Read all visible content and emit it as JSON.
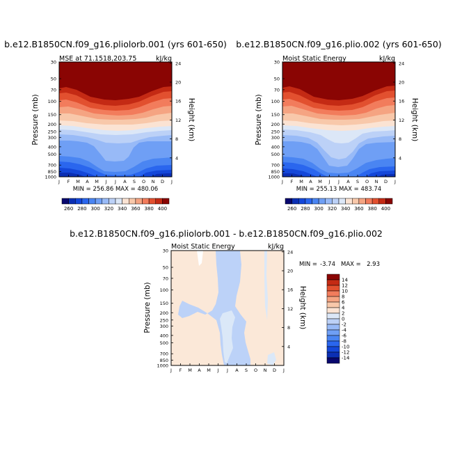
{
  "page": {
    "background": "#ffffff"
  },
  "chart_data": [
    {
      "type": "contour",
      "title": "b.e12.B1850CN.f09_g16.pliolorb.001 (yrs 601-650)",
      "panel_left_label": "MSE at 71.1518,203.75",
      "panel_right_label": "kJ/kg",
      "ylabel": "Pressure (mb)",
      "ylabel_right": "Height (km)",
      "x_ticks": [
        "J",
        "F",
        "M",
        "A",
        "M",
        "J",
        "J",
        "A",
        "S",
        "O",
        "N",
        "D",
        "J"
      ],
      "pressure_levels": [
        30,
        50,
        70,
        100,
        150,
        200,
        250,
        300,
        400,
        500,
        700,
        850,
        1000
      ],
      "height_ticks_km": [
        4,
        8,
        12,
        16,
        20,
        24
      ],
      "minmax_text": "MIN = 256.86  MAX = 480.06",
      "min": 256.86,
      "max": 480.06,
      "contour_levels": [
        260,
        270,
        280,
        290,
        300,
        310,
        320,
        330,
        340,
        350,
        360,
        370,
        380,
        390,
        400
      ],
      "colorbar_labels": [
        "260",
        "280",
        "300",
        "320",
        "340",
        "360",
        "380",
        "400"
      ]
    },
    {
      "type": "contour",
      "title": "b.e12.B1850CN.f09_g16.plio.002 (yrs 601-650)",
      "panel_left_label": "Moist Static Energy",
      "panel_right_label": "kJ/kg",
      "ylabel": "Pressure (mb)",
      "ylabel_right": "Height (km)",
      "x_ticks": [
        "J",
        "F",
        "M",
        "A",
        "M",
        "J",
        "J",
        "A",
        "S",
        "O",
        "N",
        "D",
        "J"
      ],
      "pressure_levels": [
        30,
        50,
        70,
        100,
        150,
        200,
        250,
        300,
        400,
        500,
        700,
        850,
        1000
      ],
      "height_ticks_km": [
        4,
        8,
        12,
        16,
        20,
        24
      ],
      "minmax_text": "MIN = 255.13  MAX = 483.74",
      "min": 255.13,
      "max": 483.74,
      "contour_levels": [
        260,
        270,
        280,
        290,
        300,
        310,
        320,
        330,
        340,
        350,
        360,
        370,
        380,
        390,
        400
      ],
      "colorbar_labels": [
        "260",
        "280",
        "300",
        "320",
        "340",
        "360",
        "380",
        "400"
      ]
    },
    {
      "type": "contour",
      "title": "b.e12.B1850CN.f09_g16.pliolorb.001 - b.e12.B1850CN.f09_g16.plio.002",
      "panel_left_label": "Moist Static Energy",
      "panel_right_label": "kJ/kg",
      "ylabel": "Pressure (mb)",
      "ylabel_right": "Height (km)",
      "x_ticks": [
        "J",
        "F",
        "M",
        "A",
        "M",
        "J",
        "J",
        "A",
        "S",
        "O",
        "N",
        "D",
        "J"
      ],
      "pressure_levels": [
        30,
        50,
        70,
        100,
        150,
        200,
        250,
        300,
        400,
        500,
        700,
        850,
        1000
      ],
      "height_ticks_km": [
        4,
        8,
        12,
        16,
        20,
        24
      ],
      "min_label": "MIN =",
      "min_value": "-3.74",
      "max_label": "MAX =",
      "max_value": "2.93",
      "min": -3.74,
      "max": 2.93,
      "contour_levels": [
        -14,
        -12,
        -10,
        -8,
        -6,
        -4,
        -2,
        0,
        2,
        4,
        6,
        8,
        10,
        12,
        14
      ],
      "colorbar_labels": [
        "14",
        "12",
        "10",
        "8",
        "6",
        "4",
        "2",
        "0",
        "-2",
        "-4",
        "-6",
        "-8",
        "-10",
        "-12",
        "-14"
      ]
    }
  ],
  "colors": {
    "scale16": [
      "#08076e",
      "#0b2fb4",
      "#1447d9",
      "#2a66ee",
      "#4a85f2",
      "#6f9ff5",
      "#98baf7",
      "#bcd1f7",
      "#dce7f7",
      "#fbe3d3",
      "#f8c8aa",
      "#f5a482",
      "#f27c5c",
      "#e2502f",
      "#c42a14",
      "#8a0503"
    ],
    "diff_pos": "#fbe8d8",
    "diff_neg": "#bcd2f8",
    "diff_neg2": "#dbe8f8"
  }
}
